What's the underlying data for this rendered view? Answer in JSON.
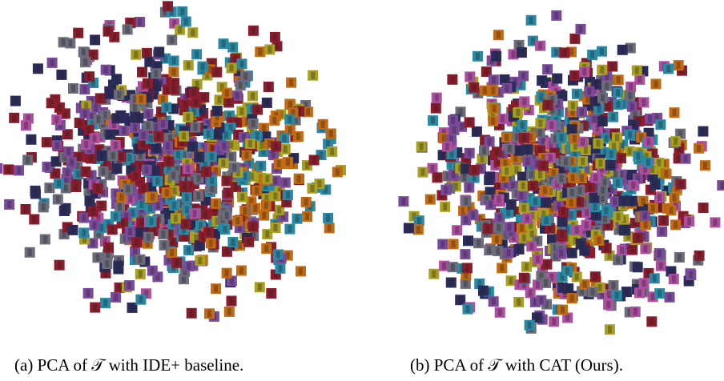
{
  "panels": [
    {
      "caption": "(a) PCA of 𝒯 with IDE+ baseline."
    },
    {
      "caption": "(b) PCA of 𝒯 with CAT (Ours)."
    }
  ]
}
